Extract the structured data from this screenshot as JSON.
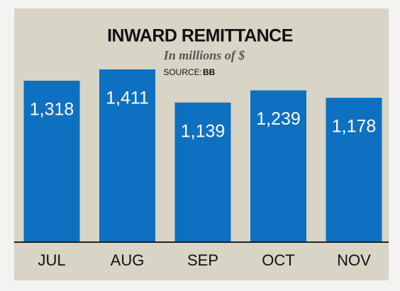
{
  "chart_data": {
    "type": "bar",
    "title": "INWARD REMITTANCE",
    "subtitle": "In millions of $",
    "source_label": "SOURCE:",
    "source": "BB",
    "categories": [
      "JUL",
      "AUG",
      "SEP",
      "OCT",
      "NOV"
    ],
    "values": [
      1318,
      1411,
      1139,
      1239,
      1178
    ],
    "value_labels": [
      "1,318",
      "1,411",
      "1,139",
      "1,239",
      "1,178"
    ],
    "color": "#0e70c0"
  }
}
